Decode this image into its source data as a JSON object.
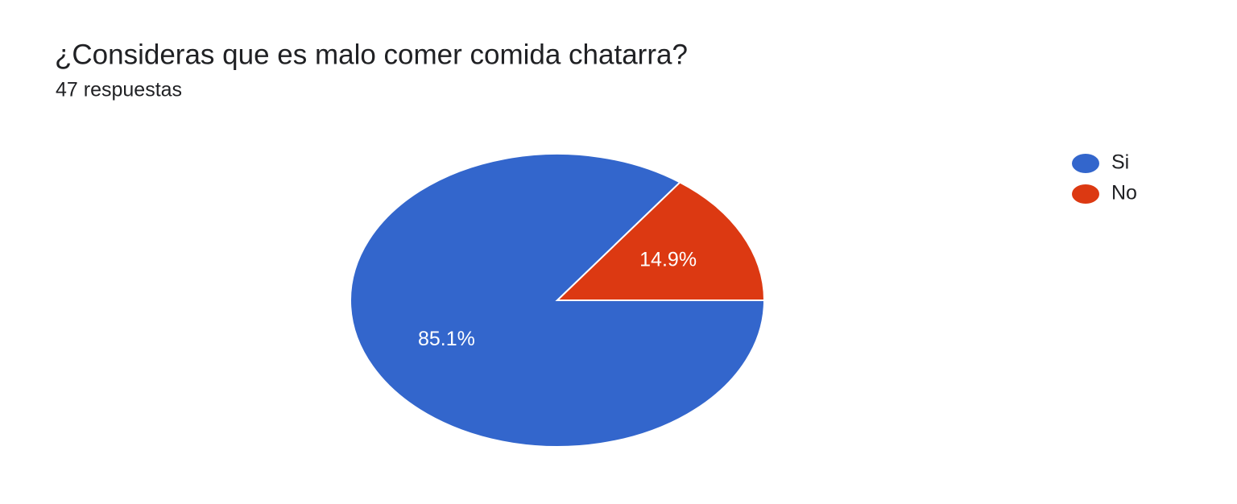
{
  "chart_data": {
    "type": "pie",
    "title": "¿Consideras que es malo comer comida chatarra?",
    "subtitle": "47 respuestas",
    "categories": [
      "Si",
      "No"
    ],
    "values": [
      85.1,
      14.9
    ],
    "value_labels": [
      "85.1%",
      "14.9%"
    ],
    "colors": [
      "#3366cc",
      "#dc3912"
    ],
    "legend": "right"
  }
}
